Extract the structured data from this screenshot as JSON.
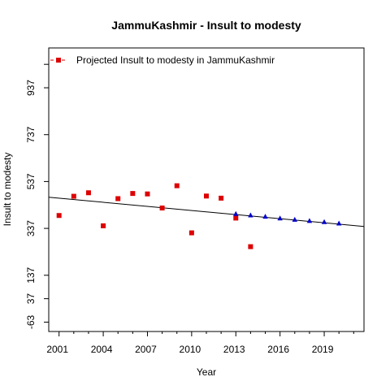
{
  "chart_data": {
    "type": "scatter",
    "title": "JammuKashmir  -  Insult to modesty",
    "xlabel": "Year",
    "ylabel": "Insult to modesty",
    "xlim": [
      2000.3,
      2021.7
    ],
    "ylim": [
      -103,
      1107
    ],
    "x_ticks": [
      2001,
      2004,
      2007,
      2010,
      2013,
      2016,
      2019
    ],
    "x_tick_labels": [
      "2001",
      "2004",
      "2007",
      "2010",
      "2013",
      "2016",
      "2019"
    ],
    "y_ticks": [
      -63,
      37,
      137,
      337,
      537,
      737,
      937
    ],
    "y_tick_labels": [
      "-63",
      "37",
      "137",
      "337",
      "537",
      "737",
      "937"
    ],
    "y_minor_ticks": [
      1037
    ],
    "legend": {
      "position": "top-left",
      "label": "Projected  Insult to modesty  in  JammuKashmir",
      "color": "#dd0000"
    },
    "series": [
      {
        "name": "",
        "kind": "actual",
        "marker": "square",
        "color": "#dd0000",
        "x": [
          2001,
          2002,
          2003,
          2004,
          2005,
          2006,
          2007,
          2008,
          2009,
          2010,
          2011,
          2012,
          2013,
          2014
        ],
        "y": [
          392,
          474,
          489,
          348,
          464,
          486,
          484,
          424,
          519,
          318,
          475,
          466,
          381,
          259
        ]
      },
      {
        "name": "",
        "kind": "projected",
        "marker": "triangle",
        "color": "#0000cc",
        "x": [
          2013,
          2014,
          2015,
          2016,
          2017,
          2018,
          2019,
          2020
        ],
        "y": [
          399,
          393,
          387,
          380,
          374,
          369,
          364,
          358
        ]
      }
    ],
    "trend_line": {
      "color": "#000000",
      "x": [
        2000.3,
        2021.7
      ],
      "y": [
        470,
        345
      ]
    }
  }
}
